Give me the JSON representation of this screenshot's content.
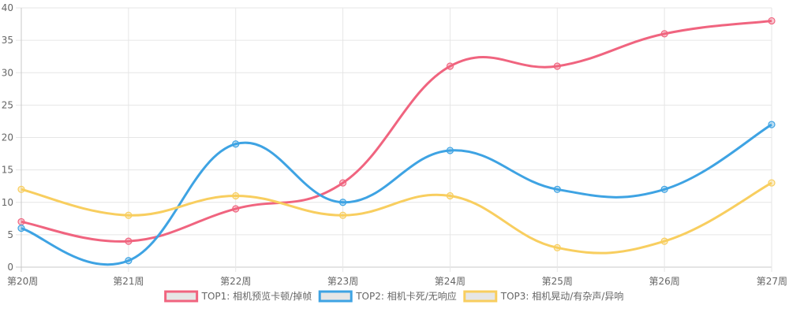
{
  "chart_data": {
    "type": "line",
    "categories": [
      "第20周",
      "第21周",
      "第22周",
      "第23周",
      "第24周",
      "第25周",
      "第26周",
      "第27周"
    ],
    "ylim": [
      0,
      40
    ],
    "yticks": [
      0,
      5,
      10,
      15,
      20,
      25,
      30,
      35,
      40
    ],
    "grid": true,
    "legend_position": "bottom",
    "series": [
      {
        "name": "TOP1: 相机预览卡顿/掉帧",
        "color": "#f0647f",
        "values": [
          7,
          4,
          9,
          13,
          31,
          31,
          36,
          38
        ]
      },
      {
        "name": "TOP2: 相机卡死/无响应",
        "color": "#3ea3e3",
        "values": [
          6,
          1,
          19,
          10,
          18,
          12,
          12,
          22
        ]
      },
      {
        "name": "TOP3: 相机晃动/有杂声/异响",
        "color": "#f8ce5f",
        "values": [
          12,
          8,
          11,
          8,
          11,
          3,
          4,
          13
        ]
      }
    ]
  }
}
